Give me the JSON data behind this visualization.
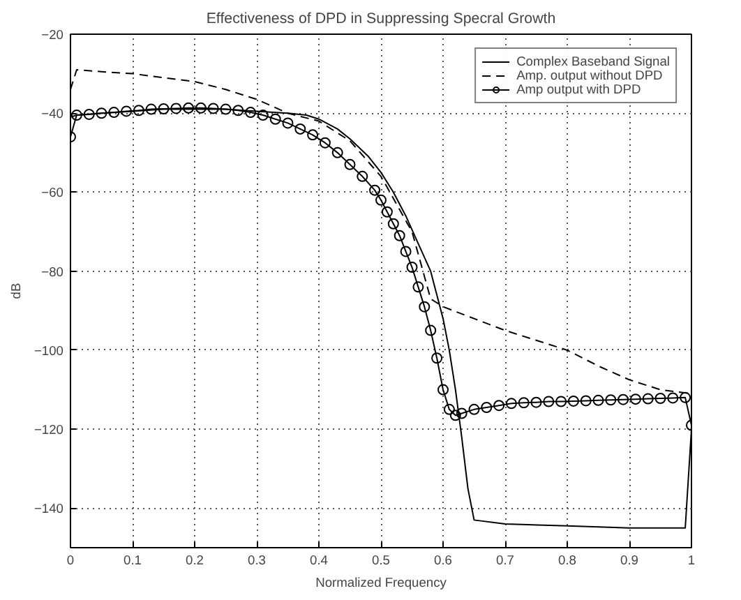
{
  "chart_data": {
    "type": "line",
    "title": "Effectiveness of DPD in Suppressing Specral Growth",
    "xlabel": "Normalized Frequency",
    "ylabel": "dB",
    "xlim": [
      0,
      1
    ],
    "ylim": [
      -150,
      -20
    ],
    "xticks": [
      0,
      0.1,
      0.2,
      0.3,
      0.4,
      0.5,
      0.6,
      0.7,
      0.8,
      0.9,
      1
    ],
    "yticks": [
      -140,
      -120,
      -100,
      -80,
      -60,
      -40,
      -20
    ],
    "grid": true,
    "legend": "top right",
    "series": [
      {
        "name": "Complex Baseband Signal",
        "color": "#000000",
        "line_style": "solid",
        "marker": "none",
        "x": [
          0,
          0.01,
          0.05,
          0.1,
          0.15,
          0.2,
          0.25,
          0.3,
          0.35,
          0.38,
          0.4,
          0.43,
          0.45,
          0.48,
          0.5,
          0.52,
          0.54,
          0.56,
          0.58,
          0.59,
          0.6,
          0.61,
          0.62,
          0.63,
          0.64,
          0.65,
          0.7,
          0.8,
          0.9,
          0.99,
          1
        ],
        "values": [
          -41,
          -40.5,
          -40,
          -39.5,
          -39,
          -39,
          -39,
          -39.5,
          -40,
          -40.5,
          -41.5,
          -44,
          -46.5,
          -51,
          -55,
          -60,
          -66,
          -73,
          -80,
          -86,
          -92,
          -100,
          -110,
          -122,
          -135,
          -143,
          -144,
          -144.5,
          -145,
          -145,
          -120
        ]
      },
      {
        "name": "Amp. output without DPD",
        "color": "#000000",
        "line_style": "dashed",
        "marker": "none",
        "x": [
          0,
          0.01,
          0.05,
          0.1,
          0.15,
          0.2,
          0.25,
          0.3,
          0.35,
          0.4,
          0.45,
          0.5,
          0.55,
          0.58,
          0.6,
          0.65,
          0.7,
          0.75,
          0.8,
          0.85,
          0.9,
          0.95,
          1
        ],
        "values": [
          -34,
          -29,
          -29.5,
          -30,
          -31,
          -32,
          -34,
          -36.5,
          -40,
          -42,
          -47,
          -56,
          -70,
          -87,
          -89,
          -92,
          -95,
          -97.5,
          -100,
          -104,
          -107.5,
          -110,
          -111
        ]
      },
      {
        "name": "Amp output with DPD",
        "color": "#000000",
        "line_style": "solid",
        "marker": "circle",
        "x": [
          0,
          0.01,
          0.03,
          0.05,
          0.07,
          0.09,
          0.11,
          0.13,
          0.15,
          0.17,
          0.19,
          0.21,
          0.23,
          0.25,
          0.27,
          0.29,
          0.31,
          0.33,
          0.35,
          0.37,
          0.39,
          0.41,
          0.43,
          0.45,
          0.47,
          0.49,
          0.5,
          0.51,
          0.52,
          0.53,
          0.54,
          0.55,
          0.56,
          0.57,
          0.58,
          0.59,
          0.6,
          0.61,
          0.62,
          0.63,
          0.65,
          0.67,
          0.69,
          0.71,
          0.73,
          0.75,
          0.77,
          0.79,
          0.81,
          0.83,
          0.85,
          0.87,
          0.89,
          0.91,
          0.93,
          0.95,
          0.97,
          0.99,
          1
        ],
        "values": [
          -46,
          -40.5,
          -40.3,
          -40,
          -39.8,
          -39.5,
          -39.3,
          -39,
          -38.9,
          -38.8,
          -38.7,
          -38.7,
          -38.8,
          -39,
          -39.3,
          -39.8,
          -40.5,
          -41.5,
          -42.5,
          -44,
          -45.5,
          -47.5,
          -50,
          -53,
          -56,
          -59.5,
          -62,
          -65,
          -68,
          -71,
          -75,
          -79,
          -84,
          -89,
          -95,
          -102,
          -110,
          -115,
          -116.5,
          -116,
          -115,
          -114.5,
          -114,
          -113.5,
          -113.3,
          -113.2,
          -113,
          -113,
          -112.9,
          -112.8,
          -112.7,
          -112.6,
          -112.5,
          -112.4,
          -112.3,
          -112.2,
          -112.1,
          -112,
          -119
        ]
      }
    ]
  }
}
